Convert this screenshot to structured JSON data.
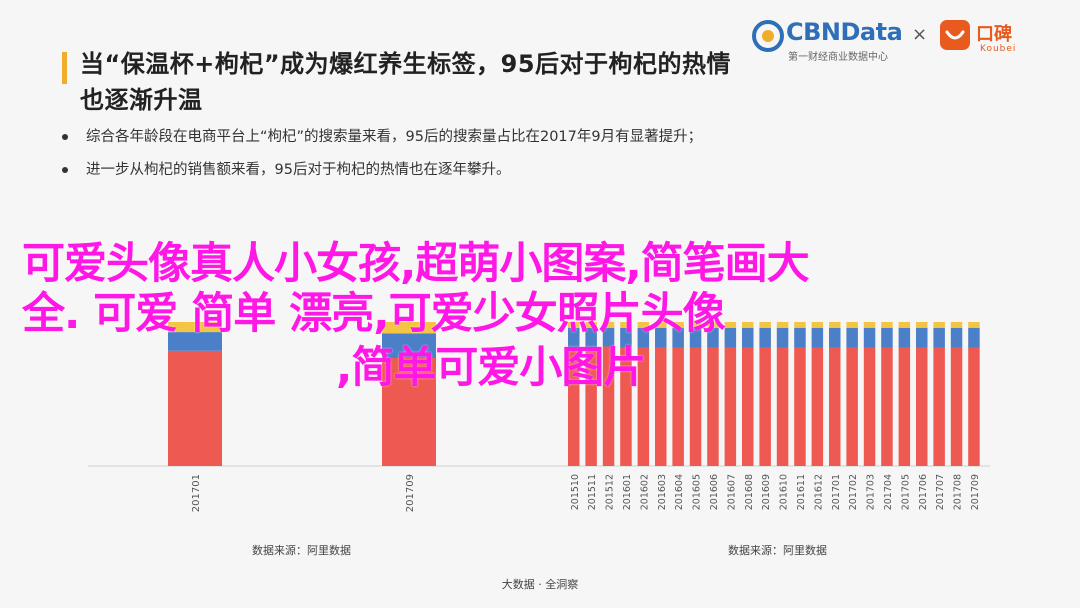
{
  "headline": {
    "line1": "当“保温杯+枸杞”成为爆红养生标签，95后对于枸杞的热情",
    "line2": "也逐渐升温"
  },
  "bullets": [
    "综合各年龄段在电商平台上“枸杞”的搜索量来看，95后的搜索量占比在2017年9月有显著提升；",
    "进一步从枸杞的销售额来看，95后对于枸杞的热情也在逐年攀升。"
  ],
  "brand": {
    "cbn_name": "CBNData",
    "cbn_sub": "第一财经商业数据中心",
    "times": "×",
    "koubei_cn": "口碑",
    "koubei_en": "Koubei"
  },
  "overlay": {
    "line1": "可爱头像真人小女孩,超萌小图案,简笔画大",
    "line2": "全. 可爱 简单 漂亮,可爱少女照片头像",
    "line3": ",简单可爱小图片"
  },
  "colors": {
    "red": "#ee5a52",
    "blue": "#4b7fc7",
    "yellow": "#f4c542",
    "gray": "#d0d0d0"
  },
  "chart_data": [
    {
      "type": "bar",
      "stacked": true,
      "categories": [
        "201701",
        "201709"
      ],
      "series": [
        {
          "values": [
            80,
            75
          ]
        },
        {
          "values": [
            13,
            17
          ]
        },
        {
          "values": [
            7,
            8
          ]
        }
      ],
      "ylim": [
        0,
        100
      ],
      "source": "数据来源：阿里数据"
    },
    {
      "type": "bar",
      "stacked": true,
      "categories": [
        "201510",
        "201511",
        "201512",
        "201601",
        "201602",
        "201603",
        "201604",
        "201605",
        "201606",
        "201607",
        "201608",
        "201609",
        "201610",
        "201611",
        "201612",
        "201701",
        "201702",
        "201703",
        "201704",
        "201705",
        "201706",
        "201707",
        "201708",
        "201709"
      ],
      "series": [
        {
          "values": [
            82,
            82,
            83,
            82,
            82,
            82,
            82,
            82,
            82,
            82,
            82,
            82,
            82,
            82,
            82,
            82,
            82,
            82,
            82,
            82,
            82,
            82,
            82,
            82
          ]
        },
        {
          "values": [
            14,
            14,
            13,
            14,
            14,
            14,
            14,
            14,
            14,
            14,
            14,
            14,
            14,
            14,
            14,
            14,
            14,
            14,
            14,
            14,
            14,
            14,
            14,
            14
          ]
        },
        {
          "values": [
            4,
            4,
            4,
            4,
            4,
            4,
            4,
            4,
            4,
            4,
            4,
            4,
            4,
            4,
            4,
            4,
            4,
            4,
            4,
            4,
            4,
            4,
            4,
            4
          ]
        }
      ],
      "ylim": [
        0,
        100
      ],
      "source": "数据来源：阿里数据"
    }
  ],
  "footer": "大数据 · 全洞察"
}
